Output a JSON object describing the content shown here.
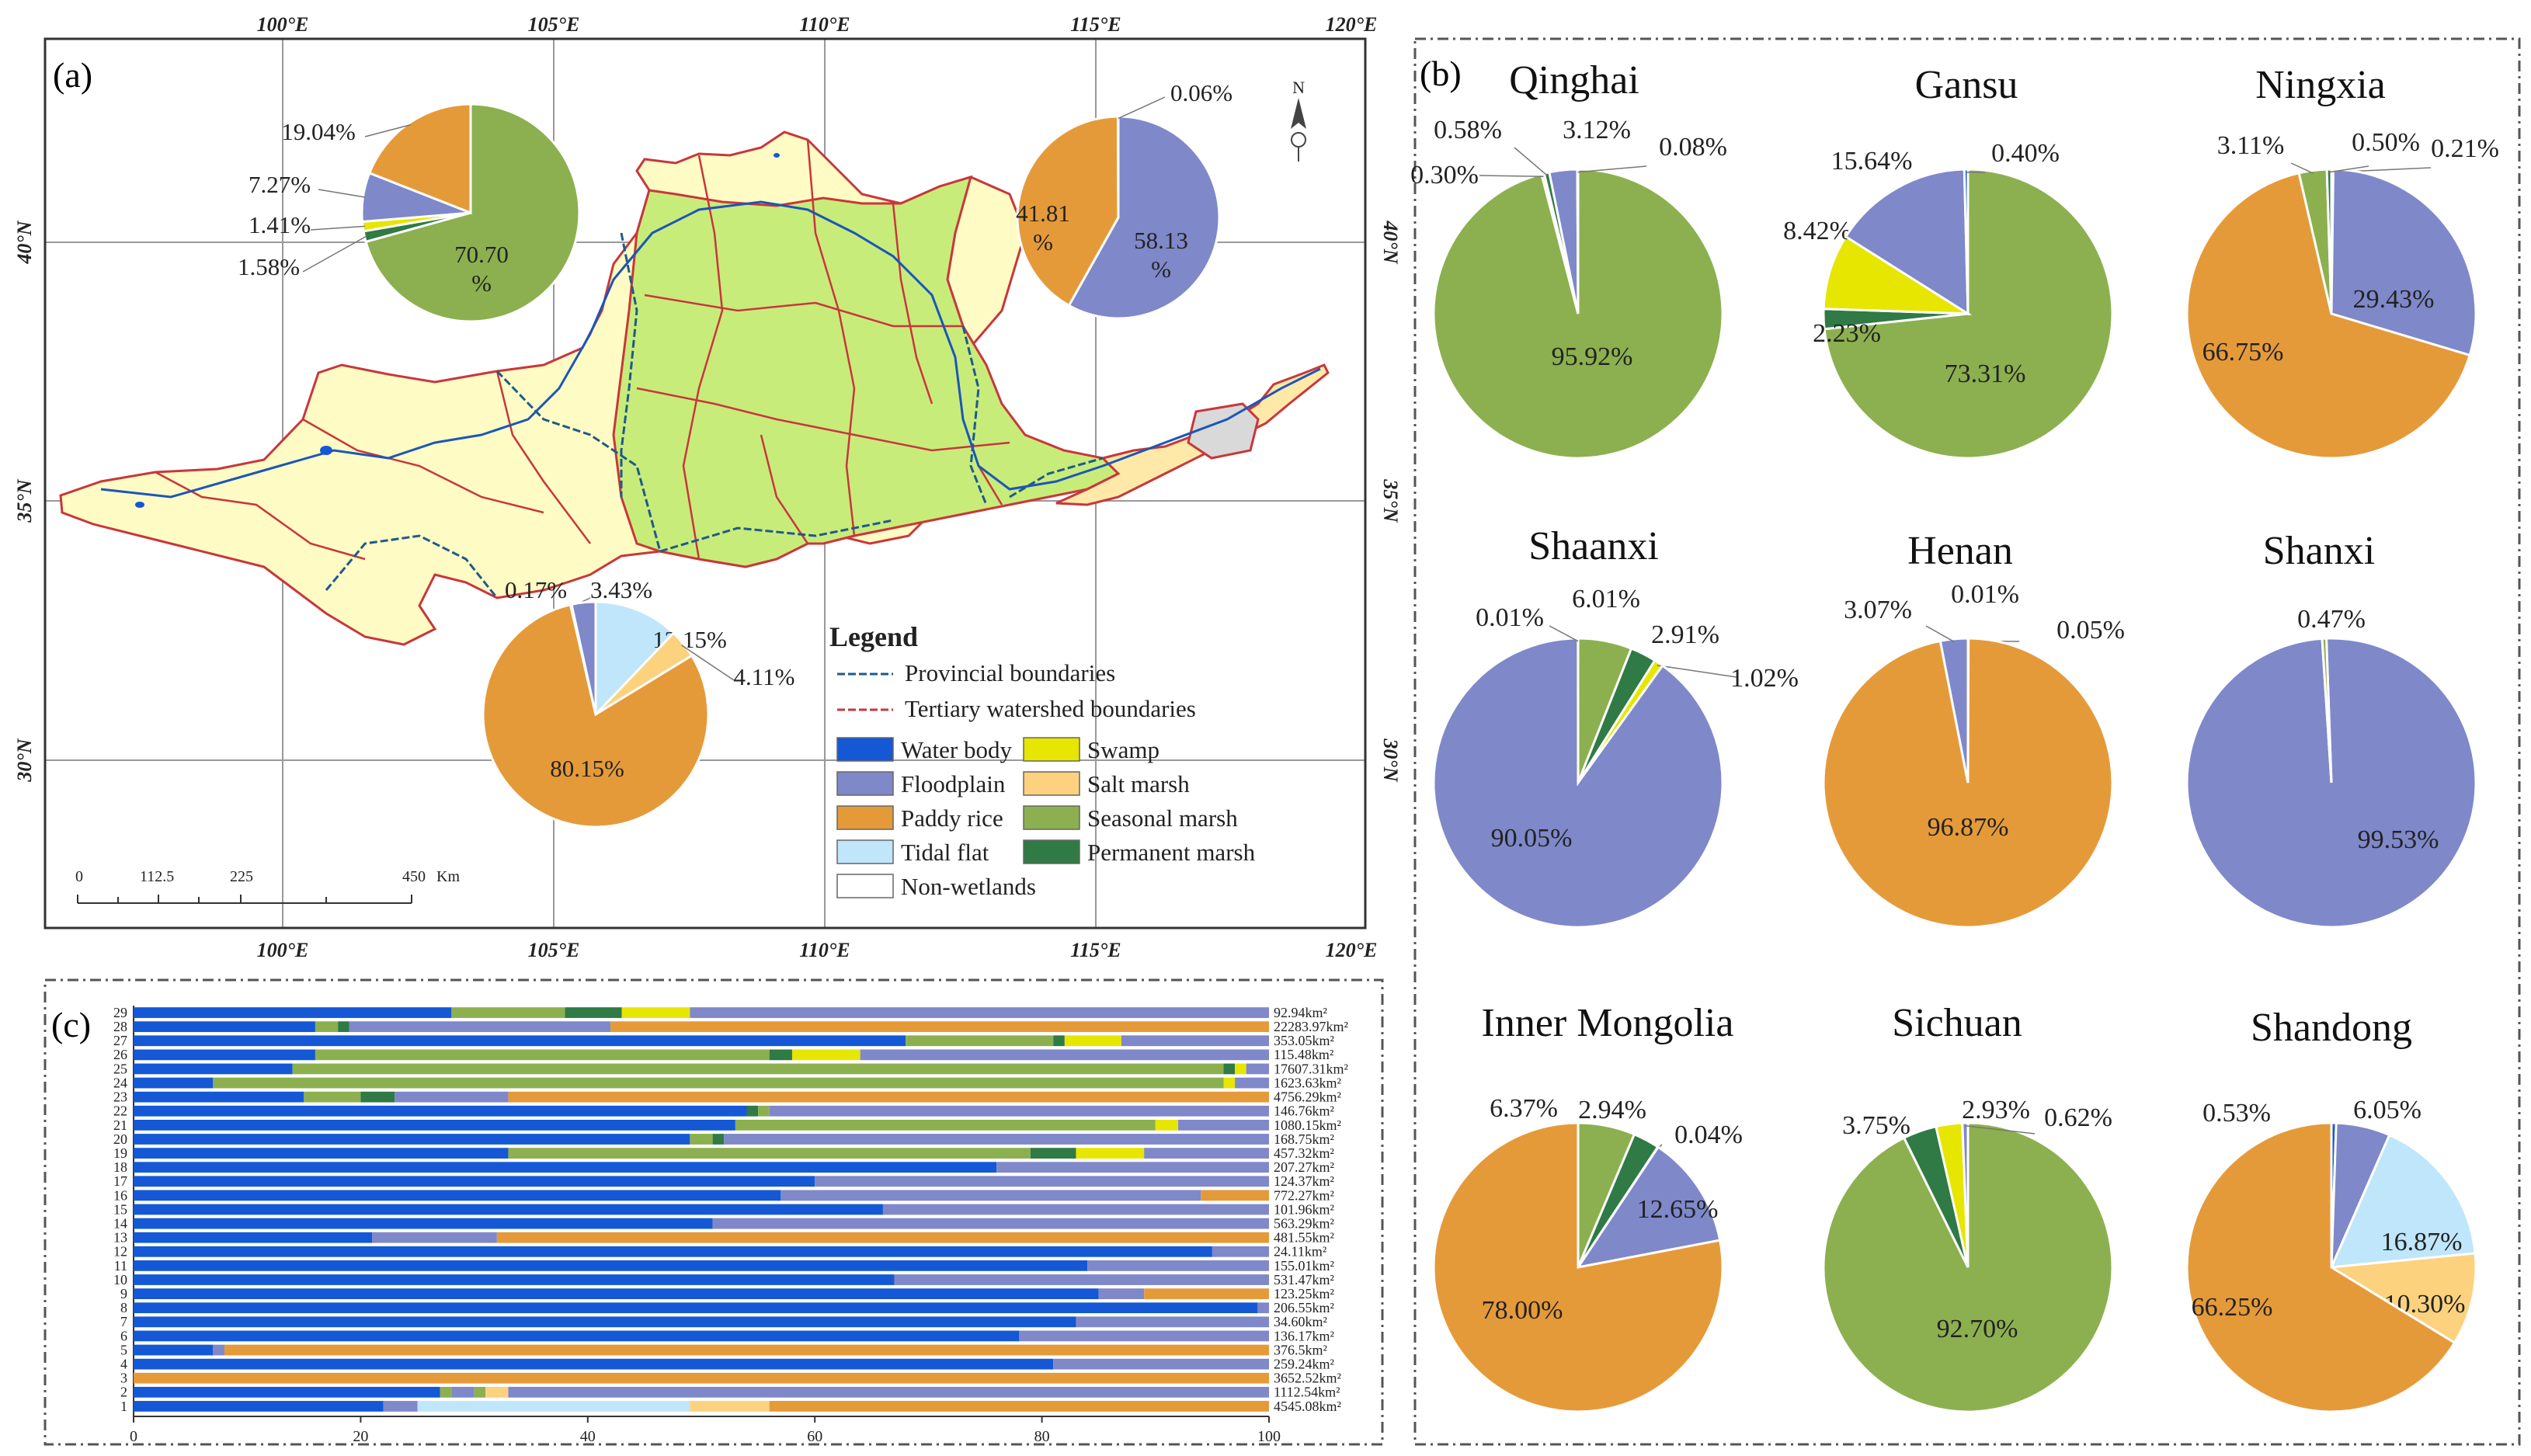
{
  "colors": {
    "water": "#1558d6",
    "floodplain": "#7f88c9",
    "paddy": "#e59a3a",
    "tidal": "#bfe6fb",
    "swamp": "#e6e600",
    "salt": "#fcd27f",
    "seasonal": "#8cb04f",
    "permanent": "#2f7a45",
    "nonwet": "#ffffff"
  },
  "panel_a": {
    "label": "(a)",
    "lon_ticks": [
      "100°E",
      "105°E",
      "110°E",
      "115°E",
      "120°E"
    ],
    "lat_ticks": [
      "40°N",
      "35°N",
      "30°N"
    ],
    "north_arrow": "N",
    "scale": {
      "ticks": [
        "0",
        "112.5",
        "225",
        "450"
      ],
      "unit": "Km"
    },
    "legend": {
      "title": "Legend",
      "lines": [
        "Provincial boundaries",
        "Tertiary watershed boundaries"
      ],
      "items": [
        {
          "key": "water",
          "label": "Water body"
        },
        {
          "key": "swamp",
          "label": "Swamp"
        },
        {
          "key": "floodplain",
          "label": "Floodplain"
        },
        {
          "key": "salt",
          "label": "Salt marsh"
        },
        {
          "key": "paddy",
          "label": "Paddy rice"
        },
        {
          "key": "seasonal",
          "label": "Seasonal marsh"
        },
        {
          "key": "tidal",
          "label": "Tidal flat"
        },
        {
          "key": "permanent",
          "label": "Permanent marsh"
        },
        {
          "key": "nonwet",
          "label": "Non-wetlands"
        }
      ]
    }
  },
  "chart_data": [
    {
      "type": "pie",
      "id": "upper",
      "slices": [
        {
          "key": "seasonal",
          "value": 70.7,
          "label": "70.70 %"
        },
        {
          "key": "permanent",
          "value": 1.58,
          "label": "1.58%"
        },
        {
          "key": "swamp",
          "value": 1.41,
          "label": "1.41%"
        },
        {
          "key": "floodplain",
          "value": 7.27,
          "label": "7.27%"
        },
        {
          "key": "paddy",
          "value": 19.04,
          "label": "19.04%"
        }
      ]
    },
    {
      "type": "pie",
      "id": "lower",
      "slices": [
        {
          "key": "floodplain",
          "value": 58.13,
          "label": "58.13 %"
        },
        {
          "key": "paddy",
          "value": 41.81,
          "label": "41.81 %"
        },
        {
          "key": "water",
          "value": 0.06,
          "label": "0.06%"
        }
      ]
    },
    {
      "type": "pie",
      "id": "middle",
      "slices": [
        {
          "key": "tidal",
          "value": 12.15,
          "label": "12.15%"
        },
        {
          "key": "salt",
          "value": 4.11,
          "label": "4.11%"
        },
        {
          "key": "paddy",
          "value": 80.15,
          "label": "80.15%"
        },
        {
          "key": "water",
          "value": 0.17,
          "label": "0.17%"
        },
        {
          "key": "floodplain",
          "value": 3.43,
          "label": "3.43%"
        }
      ]
    },
    {
      "type": "pie",
      "id": "Qinghai",
      "title": "Qinghai",
      "slices": [
        {
          "key": "seasonal",
          "value": 95.92,
          "label": "95.92%"
        },
        {
          "key": "swamp",
          "value": 0.3,
          "label": "0.30%"
        },
        {
          "key": "permanent",
          "value": 0.58,
          "label": "0.58%"
        },
        {
          "key": "floodplain",
          "value": 3.12,
          "label": "3.12%"
        },
        {
          "key": "water",
          "value": 0.08,
          "label": "0.08%"
        }
      ]
    },
    {
      "type": "pie",
      "id": "Gansu",
      "title": "Gansu",
      "slices": [
        {
          "key": "seasonal",
          "value": 73.31,
          "label": "73.31%"
        },
        {
          "key": "permanent",
          "value": 2.23,
          "label": "2.23%"
        },
        {
          "key": "swamp",
          "value": 8.42,
          "label": "8.42%"
        },
        {
          "key": "floodplain",
          "value": 15.64,
          "label": "15.64%"
        },
        {
          "key": "water",
          "value": 0.4,
          "label": "0.40%"
        }
      ]
    },
    {
      "type": "pie",
      "id": "Ningxia",
      "title": "Ningxia",
      "slices": [
        {
          "key": "water",
          "value": 0.21,
          "label": "0.21%"
        },
        {
          "key": "floodplain",
          "value": 29.43,
          "label": "29.43%"
        },
        {
          "key": "paddy",
          "value": 66.75,
          "label": "66.75%"
        },
        {
          "key": "seasonal",
          "value": 3.11,
          "label": "3.11%"
        },
        {
          "key": "permanent",
          "value": 0.5,
          "label": "0.50%"
        }
      ]
    },
    {
      "type": "pie",
      "id": "Shaanxi",
      "title": "Shaanxi",
      "slices": [
        {
          "key": "seasonal",
          "value": 6.01,
          "label": "6.01%"
        },
        {
          "key": "permanent",
          "value": 2.91,
          "label": "2.91%"
        },
        {
          "key": "swamp",
          "value": 1.02,
          "label": "1.02%"
        },
        {
          "key": "floodplain",
          "value": 90.05,
          "label": "90.05%"
        },
        {
          "key": "water",
          "value": 0.01,
          "label": "0.01%"
        }
      ]
    },
    {
      "type": "pie",
      "id": "Henan",
      "title": "Henan",
      "slices": [
        {
          "key": "water",
          "value": 0.01,
          "label": "0.01%"
        },
        {
          "key": "seasonal",
          "value": 0.05,
          "label": "0.05%"
        },
        {
          "key": "paddy",
          "value": 96.87,
          "label": "96.87%"
        },
        {
          "key": "floodplain",
          "value": 3.07,
          "label": "3.07%"
        }
      ]
    },
    {
      "type": "pie",
      "id": "Shanxi",
      "title": "Shanxi",
      "slices": [
        {
          "key": "floodplain",
          "value": 99.53,
          "label": "99.53%"
        },
        {
          "key": "seasonal",
          "value": 0.47,
          "label": "0.47%"
        }
      ]
    },
    {
      "type": "pie",
      "id": "InnerMongolia",
      "title": "Inner Mongolia",
      "slices": [
        {
          "key": "seasonal",
          "value": 6.37,
          "label": "6.37%"
        },
        {
          "key": "permanent",
          "value": 2.94,
          "label": "2.94%"
        },
        {
          "key": "water",
          "value": 0.04,
          "label": "0.04%"
        },
        {
          "key": "floodplain",
          "value": 12.65,
          "label": "12.65%"
        },
        {
          "key": "paddy",
          "value": 78.0,
          "label": "78.00%"
        }
      ]
    },
    {
      "type": "pie",
      "id": "Sichuan",
      "title": "Sichuan",
      "slices": [
        {
          "key": "seasonal",
          "value": 92.7,
          "label": "92.70%"
        },
        {
          "key": "permanent",
          "value": 3.75,
          "label": "3.75%"
        },
        {
          "key": "swamp",
          "value": 2.93,
          "label": "2.93%"
        },
        {
          "key": "floodplain",
          "value": 0.62,
          "label": "0.62%"
        }
      ]
    },
    {
      "type": "pie",
      "id": "Shandong",
      "title": "Shandong",
      "slices": [
        {
          "key": "water",
          "value": 0.53,
          "label": "0.53%"
        },
        {
          "key": "floodplain",
          "value": 6.05,
          "label": "6.05%"
        },
        {
          "key": "tidal",
          "value": 16.87,
          "label": "16.87%"
        },
        {
          "key": "salt",
          "value": 10.3,
          "label": "10.30%"
        },
        {
          "key": "paddy",
          "value": 66.25,
          "label": "66.25%"
        }
      ]
    },
    {
      "type": "bar",
      "id": "panel_c",
      "orientation": "horizontal-stacked",
      "label": "(c)",
      "xlim": [
        0,
        100
      ],
      "x_ticks": [
        "0",
        "20",
        "40",
        "60",
        "80",
        "100"
      ],
      "rows": [
        {
          "id": "1",
          "area": "4545.08km²",
          "segs": [
            [
              "water",
              22
            ],
            [
              "floodplain",
              3
            ],
            [
              "tidal",
              24
            ],
            [
              "salt",
              7
            ],
            [
              "paddy",
              44
            ]
          ]
        },
        {
          "id": "2",
          "area": "1112.54km²",
          "segs": [
            [
              "water",
              27
            ],
            [
              "seasonal",
              1
            ],
            [
              "floodplain",
              2
            ],
            [
              "seasonal",
              1
            ],
            [
              "salt",
              2
            ],
            [
              "floodplain",
              67
            ]
          ]
        },
        {
          "id": "3",
          "area": "3652.52km²",
          "segs": [
            [
              "paddy",
              100
            ]
          ]
        },
        {
          "id": "4",
          "area": "259.24km²",
          "segs": [
            [
              "water",
              81
            ],
            [
              "floodplain",
              19
            ]
          ]
        },
        {
          "id": "5",
          "area": "376.5km²",
          "segs": [
            [
              "water",
              7
            ],
            [
              "floodplain",
              1
            ],
            [
              "paddy",
              92
            ]
          ]
        },
        {
          "id": "6",
          "area": "136.17km²",
          "segs": [
            [
              "water",
              78
            ],
            [
              "floodplain",
              22
            ]
          ]
        },
        {
          "id": "7",
          "area": "34.60km²",
          "segs": [
            [
              "water",
              83
            ],
            [
              "floodplain",
              17
            ]
          ]
        },
        {
          "id": "8",
          "area": "206.55km²",
          "segs": [
            [
              "water",
              99
            ],
            [
              "floodplain",
              1
            ]
          ]
        },
        {
          "id": "9",
          "area": "123.25km²",
          "segs": [
            [
              "water",
              85
            ],
            [
              "floodplain",
              4
            ],
            [
              "paddy",
              11
            ]
          ]
        },
        {
          "id": "10",
          "area": "531.47km²",
          "segs": [
            [
              "water",
              67
            ],
            [
              "floodplain",
              33
            ]
          ]
        },
        {
          "id": "11",
          "area": "155.01km²",
          "segs": [
            [
              "water",
              84
            ],
            [
              "floodplain",
              16
            ]
          ]
        },
        {
          "id": "12",
          "area": "24.11km²",
          "segs": [
            [
              "water",
              95
            ],
            [
              "floodplain",
              5
            ]
          ]
        },
        {
          "id": "13",
          "area": "481.55km²",
          "segs": [
            [
              "water",
              21
            ],
            [
              "floodplain",
              11
            ],
            [
              "paddy",
              68
            ]
          ]
        },
        {
          "id": "14",
          "area": "563.29km²",
          "segs": [
            [
              "water",
              51
            ],
            [
              "floodplain",
              49
            ]
          ]
        },
        {
          "id": "15",
          "area": "101.96km²",
          "segs": [
            [
              "water",
              66
            ],
            [
              "floodplain",
              34
            ]
          ]
        },
        {
          "id": "16",
          "area": "772.27km²",
          "segs": [
            [
              "water",
              57
            ],
            [
              "floodplain",
              37
            ],
            [
              "paddy",
              6
            ]
          ]
        },
        {
          "id": "17",
          "area": "124.37km²",
          "segs": [
            [
              "water",
              60
            ],
            [
              "floodplain",
              40
            ]
          ]
        },
        {
          "id": "18",
          "area": "207.27km²",
          "segs": [
            [
              "water",
              76
            ],
            [
              "floodplain",
              24
            ]
          ]
        },
        {
          "id": "19",
          "area": "457.32km²",
          "segs": [
            [
              "water",
              33
            ],
            [
              "seasonal",
              46
            ],
            [
              "permanent",
              4
            ],
            [
              "swamp",
              6
            ],
            [
              "floodplain",
              11
            ]
          ]
        },
        {
          "id": "20",
          "area": "168.75km²",
          "segs": [
            [
              "water",
              49
            ],
            [
              "seasonal",
              2
            ],
            [
              "permanent",
              1
            ],
            [
              "floodplain",
              48
            ]
          ]
        },
        {
          "id": "21",
          "area": "1080.15km²",
          "segs": [
            [
              "water",
              53
            ],
            [
              "seasonal",
              37
            ],
            [
              "swamp",
              2
            ],
            [
              "floodplain",
              8
            ]
          ]
        },
        {
          "id": "22",
          "area": "146.76km²",
          "segs": [
            [
              "water",
              54
            ],
            [
              "permanent",
              1
            ],
            [
              "seasonal",
              1
            ],
            [
              "floodplain",
              44
            ]
          ]
        },
        {
          "id": "23",
          "area": "4756.29km²",
          "segs": [
            [
              "water",
              15
            ],
            [
              "seasonal",
              5
            ],
            [
              "permanent",
              3
            ],
            [
              "floodplain",
              10
            ],
            [
              "paddy",
              67
            ]
          ]
        },
        {
          "id": "24",
          "area": "1623.63km²",
          "segs": [
            [
              "water",
              7
            ],
            [
              "seasonal",
              89
            ],
            [
              "swamp",
              1
            ],
            [
              "floodplain",
              3
            ]
          ]
        },
        {
          "id": "25",
          "area": "17607.31km²",
          "segs": [
            [
              "water",
              14
            ],
            [
              "seasonal",
              82
            ],
            [
              "permanent",
              1
            ],
            [
              "swamp",
              1
            ],
            [
              "floodplain",
              2
            ]
          ]
        },
        {
          "id": "26",
          "area": "115.48km²",
          "segs": [
            [
              "water",
              16
            ],
            [
              "seasonal",
              40
            ],
            [
              "permanent",
              2
            ],
            [
              "swamp",
              6
            ],
            [
              "floodplain",
              36
            ]
          ]
        },
        {
          "id": "27",
          "area": "353.05km²",
          "segs": [
            [
              "water",
              68
            ],
            [
              "seasonal",
              13
            ],
            [
              "permanent",
              1
            ],
            [
              "swamp",
              5
            ],
            [
              "floodplain",
              13
            ]
          ]
        },
        {
          "id": "28",
          "area": "22283.97km²",
          "segs": [
            [
              "water",
              16
            ],
            [
              "seasonal",
              2
            ],
            [
              "permanent",
              1
            ],
            [
              "floodplain",
              23
            ],
            [
              "paddy",
              58
            ]
          ]
        },
        {
          "id": "29",
          "area": "92.94km²",
          "segs": [
            [
              "water",
              28
            ],
            [
              "seasonal",
              10
            ],
            [
              "permanent",
              5
            ],
            [
              "swamp",
              6
            ],
            [
              "floodplain",
              51
            ]
          ]
        }
      ]
    }
  ]
}
